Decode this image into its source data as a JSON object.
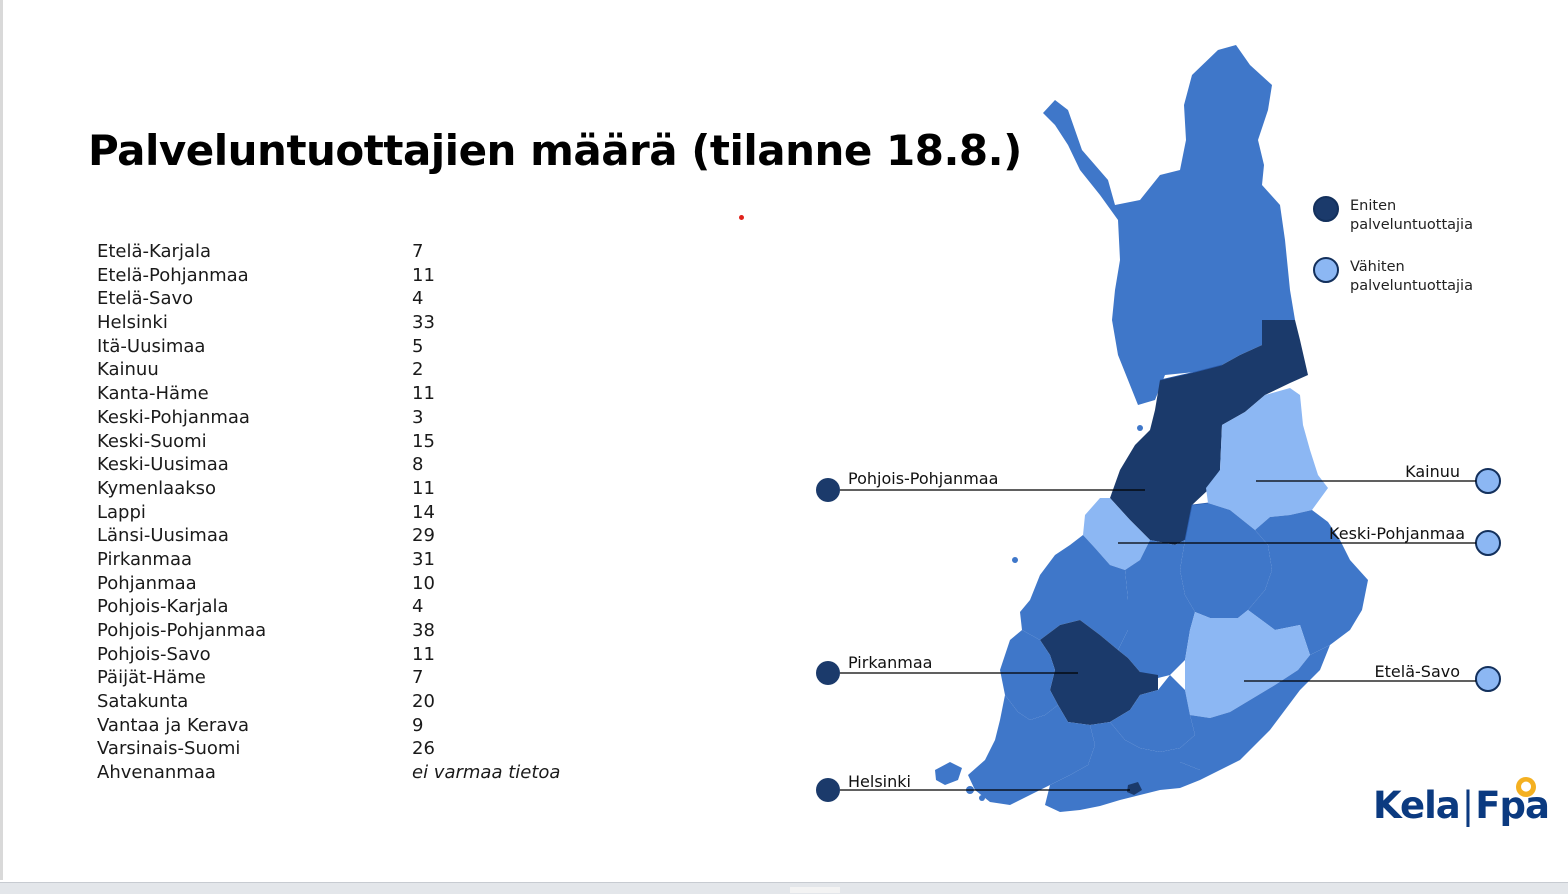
{
  "title": "Palveluntuottajien määrä (tilanne 18.8.)",
  "colors": {
    "most": "#1b3a6b",
    "least": "#8cb7f3",
    "default": "#3f77c9",
    "legend_border": "#13305c"
  },
  "regions": [
    {
      "name": "Etelä-Karjala",
      "count": "7"
    },
    {
      "name": "Etelä-Pohjanmaa",
      "count": "11"
    },
    {
      "name": "Etelä-Savo",
      "count": "4"
    },
    {
      "name": "Helsinki",
      "count": "33"
    },
    {
      "name": "Itä-Uusimaa",
      "count": "5"
    },
    {
      "name": "Kainuu",
      "count": "2"
    },
    {
      "name": "Kanta-Häme",
      "count": "11"
    },
    {
      "name": "Keski-Pohjanmaa",
      "count": "3"
    },
    {
      "name": "Keski-Suomi",
      "count": "15"
    },
    {
      "name": "Keski-Uusimaa",
      "count": "8"
    },
    {
      "name": "Kymenlaakso",
      "count": "11"
    },
    {
      "name": "Lappi",
      "count": "14"
    },
    {
      "name": "Länsi-Uusimaa",
      "count": "29"
    },
    {
      "name": "Pirkanmaa",
      "count": "31"
    },
    {
      "name": "Pohjanmaa",
      "count": "10"
    },
    {
      "name": "Pohjois-Karjala",
      "count": "4"
    },
    {
      "name": "Pohjois-Pohjanmaa",
      "count": "38"
    },
    {
      "name": "Pohjois-Savo",
      "count": "11"
    },
    {
      "name": "Päijät-Häme",
      "count": "7"
    },
    {
      "name": "Satakunta",
      "count": "20"
    },
    {
      "name": "Vantaa ja Kerava",
      "count": "9"
    },
    {
      "name": "Varsinais-Suomi",
      "count": "26"
    },
    {
      "name": "Ahvenanmaa",
      "count": "ei varmaa tietoa"
    }
  ],
  "legend": {
    "most_line1": "Eniten",
    "most_line2": "palveluntuottajia",
    "least_line1": "Vähiten",
    "least_line2": "palveluntuottajia"
  },
  "callouts": {
    "pohjois_pohjanmaa": "Pohjois-Pohjanmaa",
    "pirkanmaa": "Pirkanmaa",
    "helsinki": "Helsinki",
    "kainuu": "Kainuu",
    "keski_pohjanmaa": "Keski-Pohjanmaa",
    "etela_savo": "Etelä-Savo"
  },
  "logo": {
    "kela": "Kela",
    "fpa": "Fpa"
  }
}
